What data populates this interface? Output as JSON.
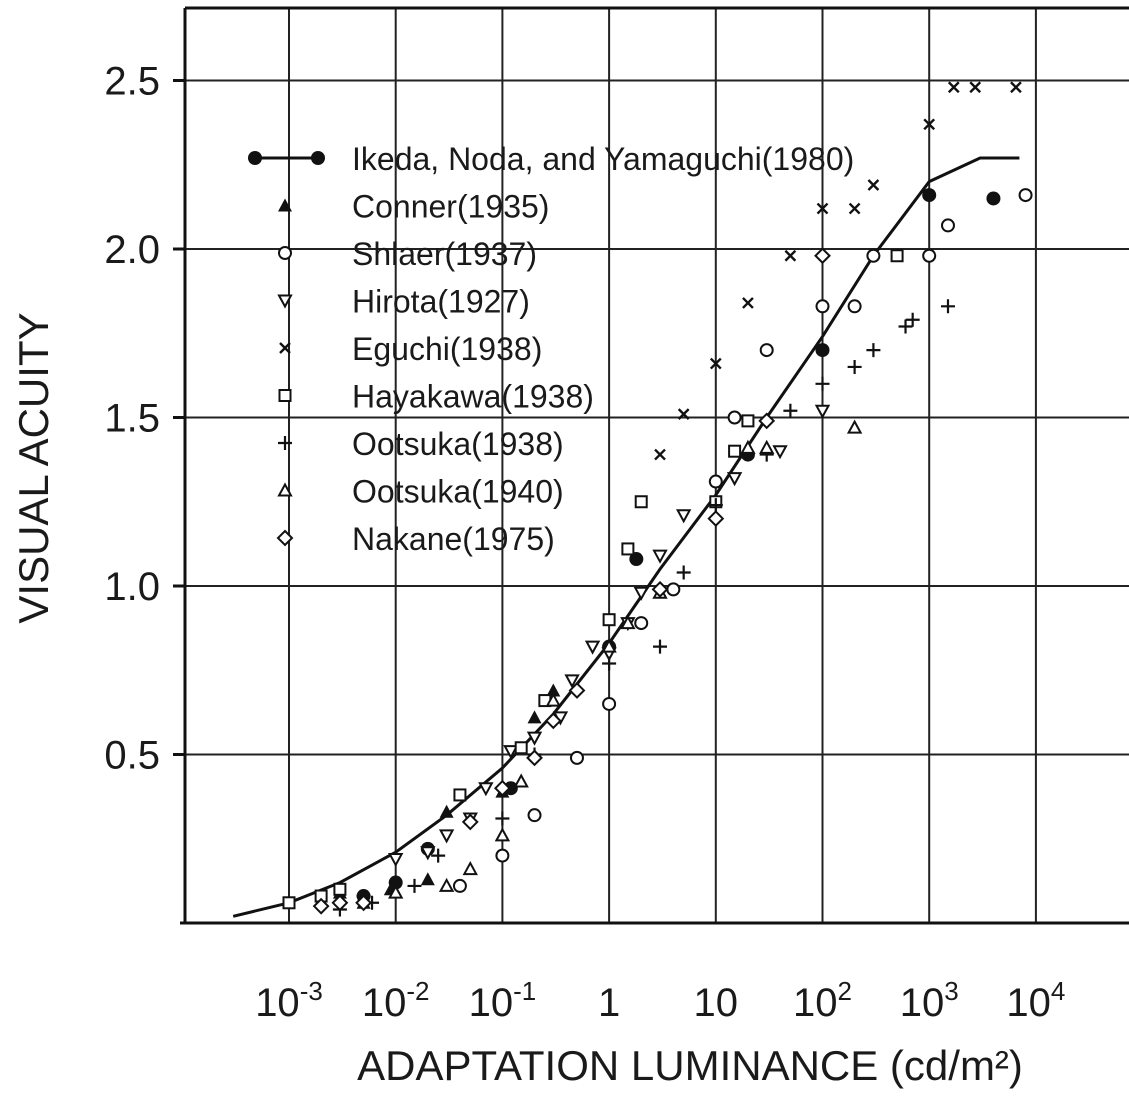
{
  "chart_data": {
    "type": "scatter",
    "xlabel": "ADAPTATION LUMINANCE (cd/m²)",
    "ylabel": "VISUAL ACUITY",
    "x_scale": "log",
    "xlim": [
      0.0001,
      100000
    ],
    "ylim": [
      0,
      2.7
    ],
    "grid": true,
    "legend_position": "top-left",
    "x_ticks": [
      {
        "value": 0.001,
        "base": "10",
        "exp": "-3"
      },
      {
        "value": 0.01,
        "base": "10",
        "exp": "-2"
      },
      {
        "value": 0.1,
        "base": "10",
        "exp": "-1"
      },
      {
        "value": 1,
        "base": "1",
        "exp": ""
      },
      {
        "value": 10,
        "base": "10",
        "exp": ""
      },
      {
        "value": 100,
        "base": "10",
        "exp": "2"
      },
      {
        "value": 1000,
        "base": "10",
        "exp": "3"
      },
      {
        "value": 10000,
        "base": "10",
        "exp": "4"
      }
    ],
    "y_ticks": [
      {
        "value": 0.5,
        "label": "0.5"
      },
      {
        "value": 1.0,
        "label": "1.0"
      },
      {
        "value": 1.5,
        "label": "1.5"
      },
      {
        "value": 2.0,
        "label": "2.0"
      },
      {
        "value": 2.5,
        "label": "2.5"
      }
    ],
    "series": [
      {
        "name": "Ikeda, Noda, and Yamaguchi(1980)",
        "marker": "filled-circle-line",
        "curve": [
          [
            0.0003,
            0.02
          ],
          [
            0.001,
            0.06
          ],
          [
            0.003,
            0.12
          ],
          [
            0.01,
            0.21
          ],
          [
            0.03,
            0.32
          ],
          [
            0.1,
            0.46
          ],
          [
            0.3,
            0.62
          ],
          [
            1,
            0.83
          ],
          [
            3,
            1.05
          ],
          [
            10,
            1.27
          ],
          [
            30,
            1.5
          ],
          [
            100,
            1.74
          ],
          [
            300,
            1.98
          ],
          [
            1000,
            2.2
          ],
          [
            3000,
            2.27
          ],
          [
            7000,
            2.27
          ]
        ],
        "points": [
          [
            0.005,
            0.08
          ],
          [
            0.01,
            0.12
          ],
          [
            0.02,
            0.22
          ],
          [
            0.12,
            0.4
          ],
          [
            1,
            0.82
          ],
          [
            1.8,
            1.08
          ],
          [
            20,
            1.39
          ],
          [
            100,
            1.7
          ],
          [
            1000,
            2.16
          ],
          [
            4000,
            2.15
          ]
        ]
      },
      {
        "name": "Conner(1935)",
        "marker": "filled-triangle",
        "points": [
          [
            0.003,
            0.09
          ],
          [
            0.005,
            0.06
          ],
          [
            0.009,
            0.1
          ],
          [
            0.02,
            0.13
          ],
          [
            0.03,
            0.33
          ],
          [
            0.1,
            0.39
          ],
          [
            0.2,
            0.61
          ],
          [
            0.3,
            0.69
          ]
        ]
      },
      {
        "name": "Shlaer(1937)",
        "marker": "open-circle",
        "points": [
          [
            0.04,
            0.11
          ],
          [
            0.1,
            0.2
          ],
          [
            0.2,
            0.32
          ],
          [
            0.5,
            0.49
          ],
          [
            1,
            0.65
          ],
          [
            2,
            0.89
          ],
          [
            4,
            0.99
          ],
          [
            10,
            1.31
          ],
          [
            15,
            1.5
          ],
          [
            30,
            1.7
          ],
          [
            100,
            1.83
          ],
          [
            200,
            1.83
          ],
          [
            300,
            1.98
          ],
          [
            1000,
            1.98
          ],
          [
            1500,
            2.07
          ],
          [
            8000,
            2.16
          ]
        ]
      },
      {
        "name": "Hirota(1927)",
        "marker": "open-triangle-down",
        "points": [
          [
            0.01,
            0.19
          ],
          [
            0.02,
            0.21
          ],
          [
            0.03,
            0.26
          ],
          [
            0.05,
            0.31
          ],
          [
            0.07,
            0.4
          ],
          [
            0.12,
            0.51
          ],
          [
            0.2,
            0.55
          ],
          [
            0.35,
            0.61
          ],
          [
            0.45,
            0.72
          ],
          [
            0.7,
            0.82
          ],
          [
            1,
            0.8
          ],
          [
            1.5,
            0.89
          ],
          [
            2,
            0.98
          ],
          [
            3,
            1.09
          ],
          [
            5,
            1.21
          ],
          [
            15,
            1.32
          ],
          [
            40,
            1.4
          ],
          [
            100,
            1.52
          ]
        ]
      },
      {
        "name": "Eguchi(1938)",
        "marker": "x",
        "points": [
          [
            3,
            1.39
          ],
          [
            5,
            1.51
          ],
          [
            10,
            1.66
          ],
          [
            20,
            1.84
          ],
          [
            50,
            1.98
          ],
          [
            100,
            2.12
          ],
          [
            200,
            2.12
          ],
          [
            300,
            2.19
          ],
          [
            1000,
            2.37
          ],
          [
            1700,
            2.48
          ],
          [
            2700,
            2.48
          ],
          [
            6500,
            2.48
          ]
        ]
      },
      {
        "name": "Hayakawa(1938)",
        "marker": "open-square",
        "points": [
          [
            0.001,
            0.06
          ],
          [
            0.002,
            0.08
          ],
          [
            0.003,
            0.1
          ],
          [
            0.04,
            0.38
          ],
          [
            0.15,
            0.52
          ],
          [
            0.25,
            0.66
          ],
          [
            1,
            0.9
          ],
          [
            1.5,
            1.11
          ],
          [
            2,
            1.25
          ],
          [
            10,
            1.25
          ],
          [
            15,
            1.4
          ],
          [
            20,
            1.49
          ],
          [
            500,
            1.98
          ]
        ]
      },
      {
        "name": "Ootsuka(1938)",
        "marker": "plus",
        "points": [
          [
            0.003,
            0.04
          ],
          [
            0.005,
            0.08
          ],
          [
            0.006,
            0.06
          ],
          [
            0.015,
            0.11
          ],
          [
            0.025,
            0.2
          ],
          [
            0.1,
            0.31
          ],
          [
            0.2,
            0.5
          ],
          [
            1,
            0.77
          ],
          [
            3,
            0.82
          ],
          [
            5,
            1.04
          ],
          [
            10,
            1.24
          ],
          [
            30,
            1.39
          ],
          [
            50,
            1.52
          ],
          [
            100,
            1.6
          ],
          [
            200,
            1.65
          ],
          [
            300,
            1.7
          ],
          [
            600,
            1.77
          ],
          [
            700,
            1.79
          ],
          [
            1500,
            1.83
          ]
        ]
      },
      {
        "name": "Ootsuka(1940)",
        "marker": "open-triangle-up",
        "points": [
          [
            0.01,
            0.09
          ],
          [
            0.03,
            0.11
          ],
          [
            0.05,
            0.16
          ],
          [
            0.1,
            0.26
          ],
          [
            0.15,
            0.42
          ],
          [
            0.3,
            0.66
          ],
          [
            1,
            0.82
          ],
          [
            1.5,
            0.89
          ],
          [
            3,
            0.98
          ],
          [
            20,
            1.41
          ],
          [
            30,
            1.41
          ],
          [
            200,
            1.47
          ]
        ]
      },
      {
        "name": "Nakane(1975)",
        "marker": "open-diamond",
        "points": [
          [
            0.002,
            0.05
          ],
          [
            0.003,
            0.06
          ],
          [
            0.005,
            0.06
          ],
          [
            0.05,
            0.3
          ],
          [
            0.1,
            0.4
          ],
          [
            0.2,
            0.49
          ],
          [
            0.3,
            0.6
          ],
          [
            0.5,
            0.69
          ],
          [
            3,
            0.99
          ],
          [
            10,
            1.2
          ],
          [
            30,
            1.49
          ],
          [
            100,
            1.98
          ]
        ]
      }
    ]
  }
}
